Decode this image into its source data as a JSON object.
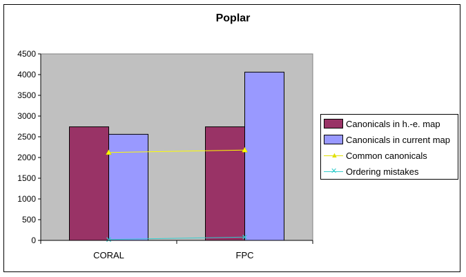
{
  "chart_data": {
    "type": "bar",
    "title": "Poplar",
    "categories": [
      "CORAL",
      "FPC"
    ],
    "ylim": [
      0,
      4500
    ],
    "yticks": [
      0,
      500,
      1000,
      1500,
      2000,
      2500,
      3000,
      3500,
      4000,
      4500
    ],
    "grid": false,
    "plot_background": "#c0c0c0",
    "legend_position": "right",
    "series": [
      {
        "name": "Canonicals in h.-e. map",
        "kind": "bar",
        "color": "#993366",
        "values": [
          2740,
          2740
        ]
      },
      {
        "name": "Canonicals in current map",
        "kind": "bar",
        "color": "#9999ff",
        "values": [
          2560,
          4060
        ]
      },
      {
        "name": "Common canonicals",
        "kind": "line",
        "marker": "triangle",
        "color": "#ffff00",
        "values": [
          2120,
          2180
        ]
      },
      {
        "name": "Ordering mistakes",
        "kind": "line",
        "marker": "x",
        "color": "#33cccc",
        "values": [
          20,
          80
        ]
      }
    ]
  }
}
